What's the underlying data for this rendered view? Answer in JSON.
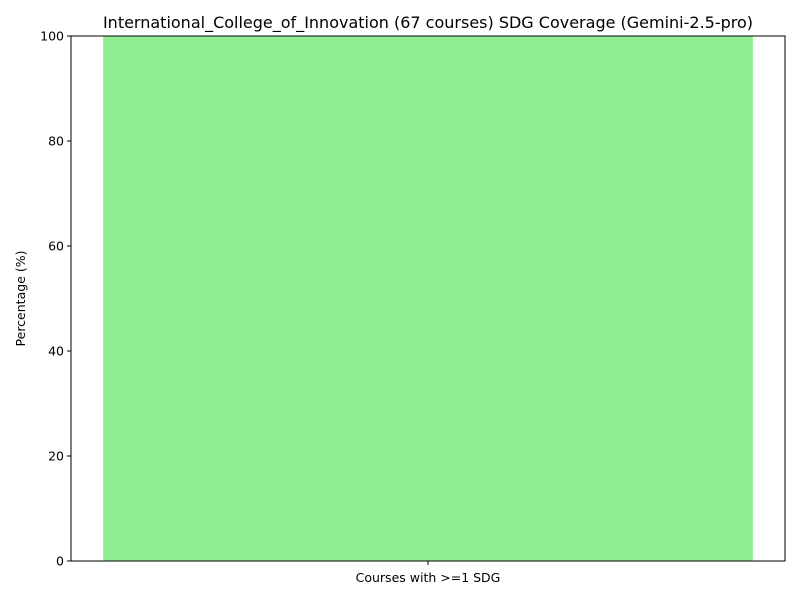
{
  "chart_data": {
    "type": "bar",
    "title": "International_College_of_Innovation (67 courses) SDG Coverage (Gemini-2.5-pro)",
    "xlabel": "",
    "ylabel": "Percentage (%)",
    "categories": [
      "Courses with >=1 SDG"
    ],
    "values": [
      100
    ],
    "ylim": [
      0,
      100
    ],
    "yticks": [
      0,
      20,
      40,
      60,
      80,
      100
    ],
    "bar_color": "#90ee90",
    "grid": false,
    "legend": "none"
  }
}
